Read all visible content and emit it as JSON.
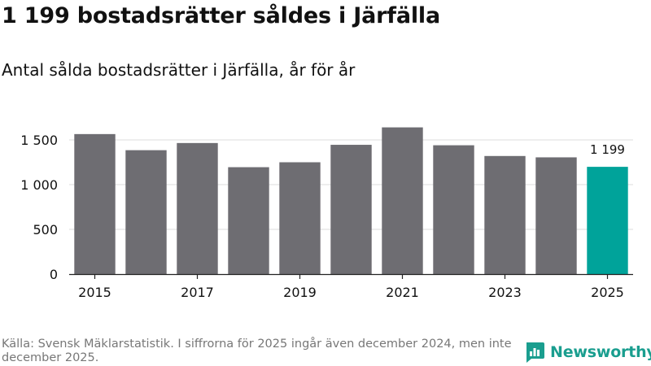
{
  "title": "1 199 bostadsrätter såldes i Järfälla",
  "subtitle": "Antal sålda bostadsrätter i Järfälla, år för år",
  "source": "Källa: Svensk Mäklarstatistik. I siffrorna för 2025 ingår även december 2024, men inte december 2025.",
  "brand": {
    "name": "Newsworthy",
    "icon": "newsworthy-logo-icon"
  },
  "colors": {
    "bar": "#6e6d72",
    "highlight": "#00a39a",
    "grid": "#dcdcdc",
    "axis": "#222222",
    "text": "#111111"
  },
  "chart_data": {
    "type": "bar",
    "title": "Antal sålda bostadsrätter i Järfälla, år för år",
    "xlabel": "",
    "ylabel": "",
    "categories": [
      "2015",
      "2016",
      "2017",
      "2018",
      "2019",
      "2020",
      "2021",
      "2022",
      "2023",
      "2024",
      "2025"
    ],
    "values": [
      1565,
      1385,
      1465,
      1195,
      1250,
      1445,
      1640,
      1440,
      1320,
      1305,
      1199
    ],
    "highlight_index": 10,
    "data_labels": [
      {
        "index": 10,
        "text": "1 199"
      }
    ],
    "x_tick_labels": [
      "2015",
      "2017",
      "2019",
      "2021",
      "2023",
      "2025"
    ],
    "y_ticks": [
      0,
      500,
      1000,
      1500
    ],
    "y_tick_labels": [
      "0",
      "500",
      "1 000",
      "1 500"
    ],
    "ylim": [
      0,
      1700
    ],
    "grid": true,
    "legend": "none"
  }
}
